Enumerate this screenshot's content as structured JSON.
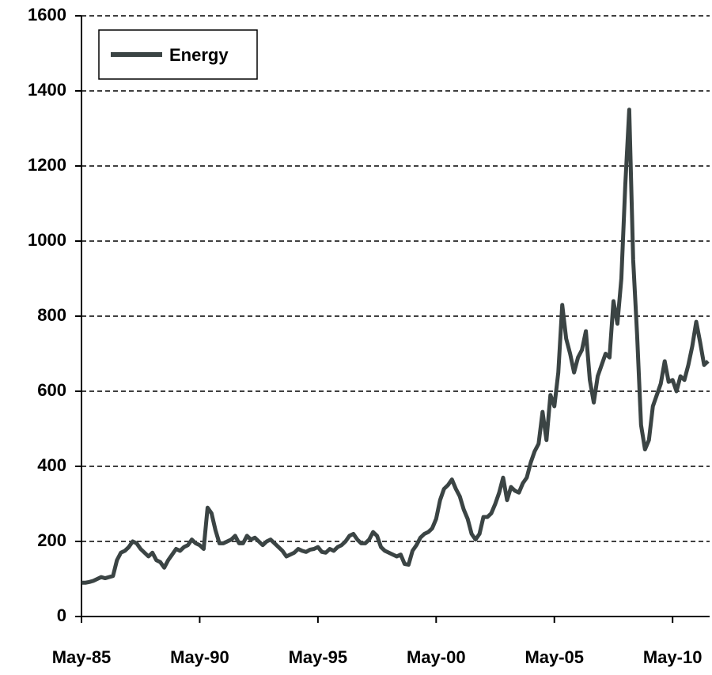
{
  "chart_data": {
    "type": "line",
    "categories": [
      "May-85",
      null,
      null,
      null,
      null,
      null,
      null,
      null,
      null,
      null,
      null,
      null,
      null,
      null,
      null,
      null,
      null,
      null,
      null,
      null,
      null,
      null,
      null,
      null,
      null,
      null,
      null,
      null,
      null,
      null,
      "May-90",
      null,
      null,
      null,
      null,
      null,
      null,
      null,
      null,
      null,
      null,
      null,
      null,
      null,
      null,
      null,
      null,
      null,
      null,
      null,
      null,
      null,
      null,
      null,
      null,
      null,
      null,
      null,
      null,
      null,
      "May-95",
      null,
      null,
      null,
      null,
      null,
      null,
      null,
      null,
      null,
      null,
      null,
      null,
      null,
      null,
      null,
      null,
      null,
      null,
      null,
      null,
      null,
      null,
      null,
      null,
      null,
      null,
      null,
      null,
      null,
      "May-00",
      null,
      null,
      null,
      null,
      null,
      null,
      null,
      null,
      null,
      null,
      null,
      null,
      null,
      null,
      null,
      null,
      null,
      null,
      null,
      null,
      null,
      null,
      null,
      null,
      null,
      null,
      null,
      null,
      null,
      "May-05",
      null,
      null,
      null,
      null,
      null,
      null,
      null,
      null,
      null,
      null,
      null,
      null,
      null,
      null,
      null,
      null,
      null,
      null,
      null,
      null,
      null,
      null,
      null,
      null,
      null,
      null,
      null,
      null,
      null,
      "May-10",
      null,
      null,
      null,
      null,
      null,
      null,
      null,
      null,
      null
    ],
    "series": [
      {
        "name": "Energy",
        "color": "#3b4444",
        "values": [
          90,
          90,
          92,
          95,
          100,
          105,
          102,
          105,
          108,
          150,
          170,
          175,
          185,
          200,
          195,
          180,
          170,
          160,
          170,
          150,
          145,
          130,
          150,
          165,
          180,
          175,
          185,
          190,
          205,
          195,
          190,
          180,
          290,
          275,
          230,
          195,
          195,
          200,
          205,
          215,
          195,
          195,
          215,
          205,
          210,
          200,
          190,
          200,
          205,
          195,
          185,
          175,
          160,
          165,
          170,
          180,
          175,
          172,
          178,
          180,
          185,
          172,
          170,
          180,
          175,
          185,
          190,
          200,
          215,
          220,
          205,
          195,
          195,
          205,
          225,
          215,
          185,
          175,
          170,
          165,
          160,
          165,
          140,
          138,
          175,
          190,
          210,
          220,
          225,
          235,
          260,
          310,
          340,
          350,
          365,
          340,
          320,
          285,
          260,
          220,
          205,
          220,
          265,
          265,
          275,
          300,
          330,
          370,
          310,
          345,
          335,
          330,
          355,
          370,
          410,
          440,
          460,
          545,
          470,
          590,
          560,
          650,
          830,
          740,
          700,
          650,
          690,
          710,
          760,
          630,
          570,
          640,
          670,
          700,
          690,
          840,
          780,
          900,
          1150,
          1350,
          950,
          750,
          510,
          445,
          470,
          560,
          590,
          620,
          680,
          625,
          630,
          600,
          640,
          630,
          670,
          720,
          785,
          730,
          670,
          680
        ]
      }
    ],
    "ylim": [
      0,
      1600
    ],
    "yticks": [
      0,
      200,
      400,
      600,
      800,
      1000,
      1200,
      1400,
      1600
    ],
    "grid": true,
    "legend": "upper left"
  }
}
